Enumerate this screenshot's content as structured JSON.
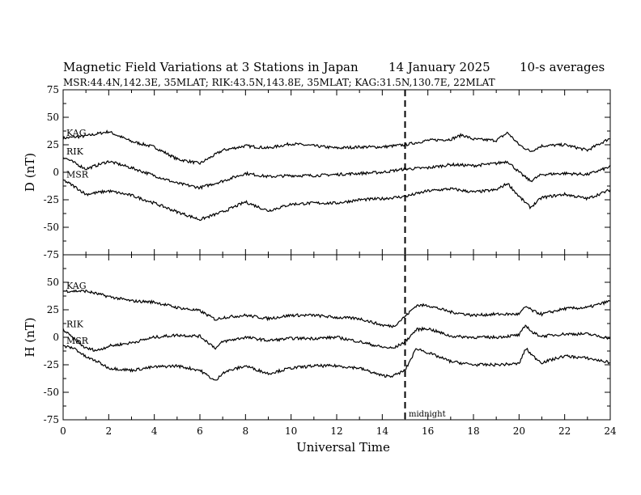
{
  "title": {
    "main": "Magnetic Field Variations at 3 Stations in Japan",
    "date": "14 January 2025",
    "avg": "10-s averages"
  },
  "subtitle": "MSR:44.4N,142.3E, 35MLAT;  RIK:43.5N,143.8E, 35MLAT;  KAG:31.5N,130.7E, 22MLAT",
  "xlabel": "Universal Time",
  "annotation": "midnight",
  "chart_data": [
    {
      "type": "line",
      "ylabel": "D (nT)",
      "xlim": [
        0,
        24
      ],
      "ylim": [
        -75,
        75
      ],
      "yticks": [
        75,
        50,
        25,
        0,
        -25,
        -50,
        -75
      ],
      "vline_x": 15,
      "series": [
        {
          "name": "KAG",
          "x": [
            0,
            1,
            2,
            3,
            4,
            5,
            6,
            7,
            8,
            9,
            10,
            11,
            12,
            13,
            14,
            15,
            16,
            17,
            17.5,
            18,
            19,
            19.5,
            20,
            20.5,
            21,
            22,
            23,
            24
          ],
          "y": [
            31,
            33,
            37,
            28,
            23,
            12,
            8,
            20,
            24,
            22,
            26,
            24,
            22,
            23,
            23,
            25,
            29,
            30,
            34,
            30,
            29,
            36,
            25,
            19,
            24,
            25,
            20,
            31
          ]
        },
        {
          "name": "RIK",
          "x": [
            0,
            1,
            2,
            3,
            4,
            5,
            6,
            7,
            8,
            9,
            10,
            11,
            12,
            13,
            14,
            15,
            16,
            17,
            18,
            19,
            19.5,
            20,
            20.5,
            21,
            22,
            23,
            24
          ],
          "y": [
            14,
            3,
            10,
            4,
            -3,
            -10,
            -14,
            -8,
            -1,
            -4,
            -3,
            -3,
            -2,
            -1,
            0,
            3,
            4,
            7,
            6,
            8,
            10,
            0,
            -8,
            -2,
            -1,
            -2,
            5
          ]
        },
        {
          "name": "MSR",
          "x": [
            0,
            0.5,
            1,
            2,
            3,
            4,
            5,
            6,
            7,
            8,
            9,
            10,
            11,
            12,
            13,
            14,
            15,
            16,
            17,
            18,
            19,
            19.5,
            20,
            20.5,
            21,
            22,
            23,
            24
          ],
          "y": [
            -7,
            -13,
            -20,
            -17,
            -21,
            -28,
            -36,
            -43,
            -36,
            -27,
            -35,
            -29,
            -28,
            -28,
            -25,
            -24,
            -22,
            -17,
            -15,
            -18,
            -16,
            -10,
            -22,
            -32,
            -23,
            -20,
            -24,
            -16
          ]
        }
      ]
    },
    {
      "type": "line",
      "ylabel": "H (nT)",
      "xlim": [
        0,
        24
      ],
      "ylim": [
        -75,
        75
      ],
      "yticks": [
        75,
        50,
        25,
        0,
        -25,
        -50,
        -75
      ],
      "xticks": [
        0,
        2,
        4,
        6,
        8,
        10,
        12,
        14,
        16,
        18,
        20,
        22,
        24
      ],
      "vline_x": 15,
      "series": [
        {
          "name": "KAG",
          "x": [
            0,
            1,
            2,
            3,
            4,
            5,
            6,
            6.7,
            7,
            8,
            9,
            10,
            11,
            12,
            13,
            14,
            14.5,
            15,
            15.5,
            16,
            17,
            18,
            19,
            20,
            20.3,
            20.6,
            21,
            22,
            23,
            24
          ],
          "y": [
            42,
            42,
            37,
            33,
            32,
            27,
            24,
            16,
            18,
            20,
            17,
            20,
            20,
            18,
            17,
            11,
            10,
            19,
            29,
            29,
            23,
            20,
            21,
            21,
            28,
            24,
            21,
            26,
            27,
            33
          ]
        },
        {
          "name": "RIK",
          "x": [
            0,
            0.5,
            1,
            1.5,
            2,
            3,
            4,
            5,
            6,
            6.7,
            7,
            8,
            9,
            10,
            11,
            12,
            13,
            14,
            14.5,
            15,
            15.5,
            16,
            17,
            18,
            19,
            20,
            20.3,
            20.6,
            21,
            22,
            23,
            24
          ],
          "y": [
            7,
            -2,
            -10,
            -12,
            -8,
            -5,
            0,
            2,
            1,
            -10,
            -4,
            0,
            -3,
            -1,
            -1,
            0,
            -4,
            -9,
            -10,
            -4,
            7,
            8,
            1,
            0,
            0,
            2,
            11,
            4,
            1,
            3,
            3,
            -1
          ]
        },
        {
          "name": "MSR",
          "x": [
            0,
            0.5,
            1,
            1.5,
            2,
            3,
            4,
            5,
            6,
            6.7,
            7,
            8,
            9,
            10,
            11,
            12,
            13,
            14,
            14.5,
            15,
            15.5,
            16,
            17,
            18,
            19,
            20,
            20.3,
            20.6,
            21,
            22,
            23,
            24
          ],
          "y": [
            -8,
            -10,
            -18,
            -22,
            -28,
            -30,
            -27,
            -26,
            -30,
            -40,
            -32,
            -26,
            -33,
            -28,
            -26,
            -26,
            -28,
            -35,
            -35,
            -30,
            -10,
            -14,
            -22,
            -25,
            -25,
            -24,
            -10,
            -17,
            -23,
            -17,
            -19,
            -23
          ]
        }
      ]
    }
  ]
}
